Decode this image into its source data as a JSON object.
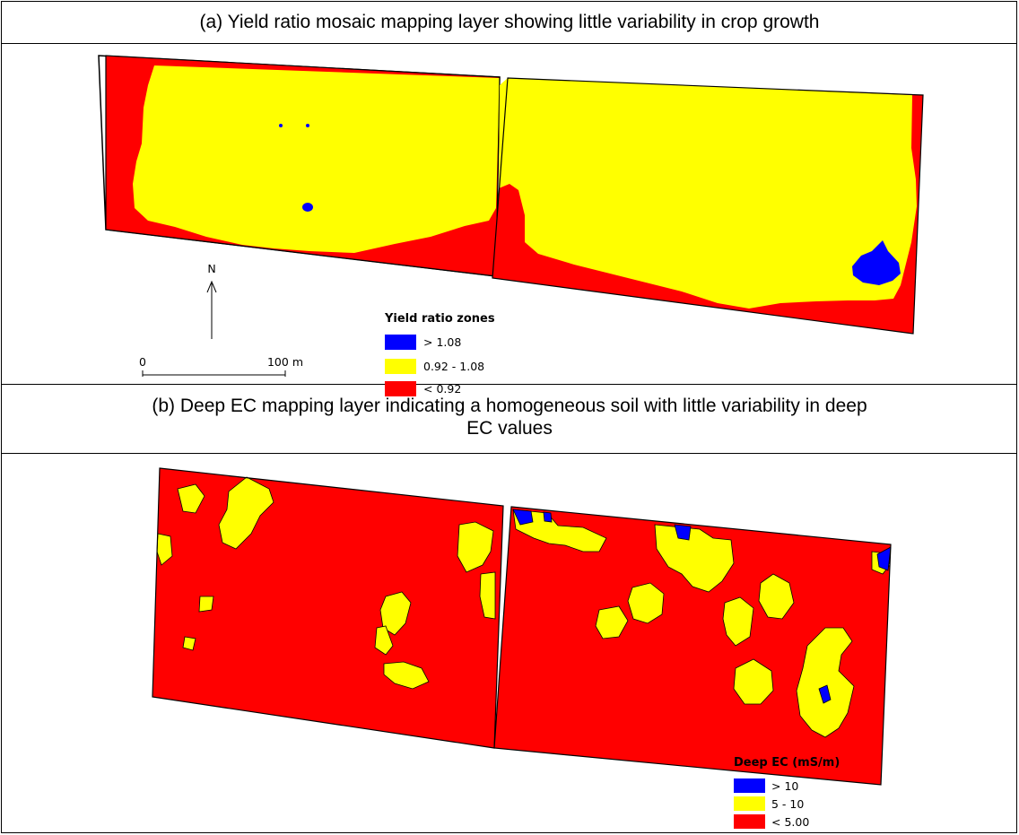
{
  "panel_a": {
    "caption": "(a)  Yield ratio mosaic mapping layer showing little variability in crop growth",
    "north_label": "N",
    "scale_bar": {
      "start_label": "0",
      "end_label": "100 m"
    },
    "legend": {
      "title": "Yield ratio zones",
      "items": [
        {
          "label": "> 1.08",
          "color": "#0000ff"
        },
        {
          "label": "0.92 - 1.08",
          "color": "#ffff00"
        },
        {
          "label": "< 0.92",
          "color": "#ff0000"
        }
      ]
    }
  },
  "panel_b": {
    "caption_line1": "(b)  Deep EC mapping layer indicating a homogeneous soil with little variability in deep",
    "caption_line2": "EC values",
    "legend": {
      "title": "Deep EC (mS/m)",
      "items": [
        {
          "label": "> 10",
          "color": "#0000ff"
        },
        {
          "label": "5 - 10",
          "color": "#ffff00"
        },
        {
          "label": "< 5.00",
          "color": "#ff0000"
        }
      ]
    }
  }
}
